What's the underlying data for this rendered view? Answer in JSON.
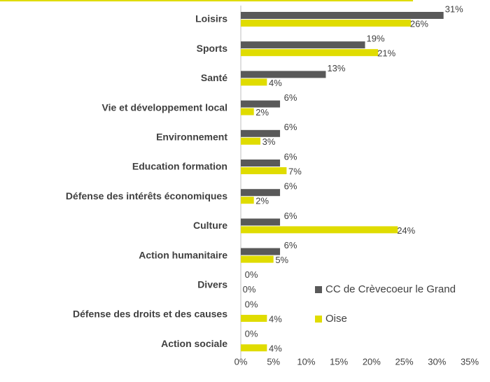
{
  "chart_data": {
    "type": "bar",
    "orientation": "horizontal",
    "categories": [
      "Loisirs",
      "Sports",
      "Santé",
      "Vie et développement local",
      "Environnement",
      "Education formation",
      "Défense des intérêts économiques",
      "Culture",
      "Action humanitaire",
      "Divers",
      "Défense des droits et des causes",
      "Action sociale"
    ],
    "series": [
      {
        "name": "CC de Crèvecoeur le Grand",
        "color": "#595959",
        "values": [
          31,
          19,
          13,
          6,
          6,
          6,
          6,
          6,
          6,
          0,
          0,
          0
        ],
        "value_labels": [
          "31%",
          "19%",
          "13%",
          "6%",
          "6%",
          "6%",
          "6%",
          "6%",
          "6%",
          "0%",
          "0%",
          "0%"
        ]
      },
      {
        "name": "Oise",
        "color": "#e0dc00",
        "values": [
          26,
          21,
          4,
          2,
          3,
          7,
          2,
          24,
          5,
          0,
          4,
          4
        ],
        "value_labels": [
          "26%",
          "21%",
          "4%",
          "2%",
          "3%",
          "7%",
          "2%",
          "24%",
          "5%",
          "0%",
          "4%",
          "4%"
        ]
      }
    ],
    "xlim": [
      0,
      35
    ],
    "xticks": [
      {
        "value": 0,
        "label": "0%"
      },
      {
        "value": 5,
        "label": "5%"
      },
      {
        "value": 10,
        "label": "10%"
      },
      {
        "value": 15,
        "label": "15%"
      },
      {
        "value": 20,
        "label": "20%"
      },
      {
        "value": 25,
        "label": "25%"
      },
      {
        "value": 30,
        "label": "30%"
      },
      {
        "value": 35,
        "label": "35%"
      }
    ]
  }
}
